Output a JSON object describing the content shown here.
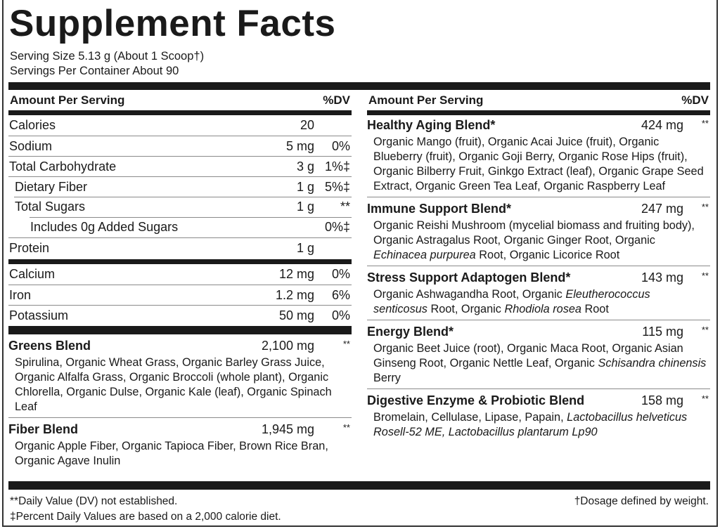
{
  "title": "Supplement Facts",
  "serving_size": "Serving Size 5.13 g (About 1 Scoop†)",
  "servings_per_container": "Servings Per Container About 90",
  "header": {
    "amount": "Amount Per Serving",
    "dv": "%DV"
  },
  "nutrients": [
    {
      "name": "Calories",
      "amount": "20",
      "dv": "",
      "level": 0
    },
    {
      "name": "Sodium",
      "amount": "5 mg",
      "dv": "0%",
      "level": 0
    },
    {
      "name": "Total Carbohydrate",
      "amount": "3 g",
      "dv": "1%‡",
      "level": 0
    },
    {
      "name": "Dietary Fiber",
      "amount": "1 g",
      "dv": "5%‡",
      "level": 1
    },
    {
      "name": "Total Sugars",
      "amount": "1 g",
      "dv": "**",
      "level": 1
    },
    {
      "name": "Includes 0g Added Sugars",
      "amount": "",
      "dv": "0%‡",
      "level": 2
    },
    {
      "name": "Protein",
      "amount": "1 g",
      "dv": "",
      "level": 0
    }
  ],
  "minerals": [
    {
      "name": "Calcium",
      "amount": "12 mg",
      "dv": "0%"
    },
    {
      "name": "Iron",
      "amount": "1.2 mg",
      "dv": "6%"
    },
    {
      "name": "Potassium",
      "amount": "50 mg",
      "dv": "0%"
    }
  ],
  "left_blends": [
    {
      "name": "Greens Blend",
      "amount": "2,100 mg",
      "dv": "**",
      "ingredients": [
        {
          "t": "Spirulina, Organic Wheat Grass, Organic Barley Grass Juice, Organic Alfalfa Grass, Organic Broccoli (whole plant), Organic Chlorella, Organic Dulse, Organic Kale (leaf), Organic Spinach Leaf"
        }
      ]
    },
    {
      "name": "Fiber Blend",
      "amount": "1,945 mg",
      "dv": "**",
      "ingredients": [
        {
          "t": "Organic Apple Fiber, Organic Tapioca Fiber, Brown Rice Bran, Organic Agave Inulin"
        }
      ]
    }
  ],
  "right_blends": [
    {
      "name": "Healthy Aging Blend*",
      "amount": "424 mg",
      "dv": "**",
      "ingredients": [
        {
          "t": "Organic Mango (fruit), Organic Acai Juice (fruit), Organic Blueberry (fruit), Organic Goji Berry, Organic Rose Hips (fruit), Organic Bilberry Fruit, Ginkgo Extract (leaf), Organic Grape Seed Extract, Organic Green Tea Leaf, Organic Raspberry Leaf"
        }
      ]
    },
    {
      "name": "Immune Support Blend*",
      "amount": "247 mg",
      "dv": "**",
      "ingredients": [
        {
          "t": "Organic Reishi Mushroom (mycelial biomass and fruiting body), Organic Astragalus Root, Organic Ginger Root, Organic "
        },
        {
          "t": "Echinacea purpurea",
          "i": true
        },
        {
          "t": " Root, Organic Licorice Root"
        }
      ]
    },
    {
      "name": "Stress Support Adaptogen Blend*",
      "amount": "143 mg",
      "dv": "**",
      "ingredients": [
        {
          "t": "Organic Ashwagandha Root, Organic "
        },
        {
          "t": "Eleutherococcus senticosus",
          "i": true
        },
        {
          "t": " Root, Organic "
        },
        {
          "t": "Rhodiola rosea",
          "i": true
        },
        {
          "t": " Root"
        }
      ]
    },
    {
      "name": "Energy Blend*",
      "amount": "115 mg",
      "dv": "**",
      "ingredients": [
        {
          "t": "Organic Beet Juice (root), Organic Maca Root, Organic Asian Ginseng Root, Organic Nettle Leaf, Organic "
        },
        {
          "t": "Schisandra chinensis",
          "i": true
        },
        {
          "t": " Berry"
        }
      ]
    },
    {
      "name": "Digestive Enzyme & Probiotic Blend",
      "amount": "158 mg",
      "dv": "**",
      "ingredients": [
        {
          "t": "Bromelain, Cellulase, Lipase, Papain, "
        },
        {
          "t": "Lactobacillus helveticus Rosell-52 ME, Lactobacillus plantarum Lp90",
          "i": true
        }
      ]
    }
  ],
  "footnotes": {
    "dv_not_established": "**Daily Value (DV) not established.",
    "percent_basis": "‡Percent Daily Values are based on a 2,000 calorie diet.",
    "dosage": "†Dosage defined by weight."
  }
}
